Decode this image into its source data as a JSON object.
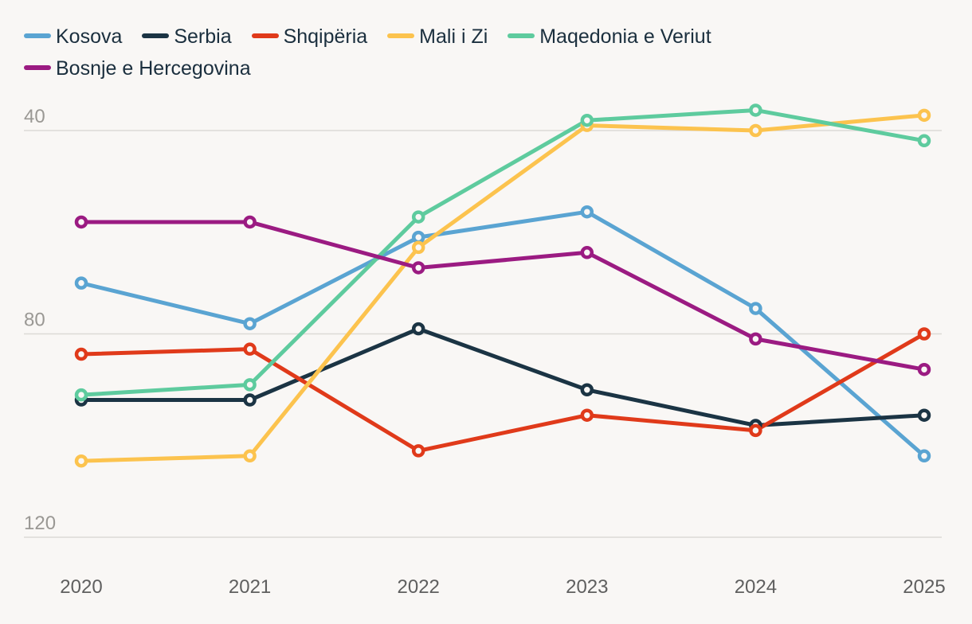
{
  "chart_data": {
    "type": "line",
    "title": "",
    "xlabel": "",
    "ylabel": "",
    "y_inverted": true,
    "ylim": [
      120,
      40
    ],
    "y_ticks": [
      40,
      80,
      120
    ],
    "y_tick_labels": [
      "40",
      "80",
      "120"
    ],
    "x": [
      "2020",
      "2021",
      "2022",
      "2023",
      "2024",
      "2025"
    ],
    "grid": true,
    "legend_position": "top-left",
    "series": [
      {
        "name": "Kosova",
        "color": "#5aa4d2",
        "values": [
          70,
          78,
          61,
          56,
          75,
          104
        ]
      },
      {
        "name": "Serbia",
        "color": "#1b3444",
        "values": [
          93,
          93,
          79,
          91,
          98,
          96
        ]
      },
      {
        "name": "Shqipëria",
        "color": "#e03a1a",
        "values": [
          84,
          83,
          103,
          96,
          99,
          80
        ]
      },
      {
        "name": "Mali i Zi",
        "color": "#fcc34e",
        "values": [
          105,
          104,
          63,
          39,
          40,
          37
        ]
      },
      {
        "name": "Maqedonia e Veriut",
        "color": "#5ecb9e",
        "values": [
          92,
          90,
          57,
          38,
          36,
          42
        ]
      },
      {
        "name": "Bosnje e Hercegovina",
        "color": "#9b1b82",
        "values": [
          58,
          58,
          67,
          64,
          81,
          87
        ]
      }
    ]
  }
}
